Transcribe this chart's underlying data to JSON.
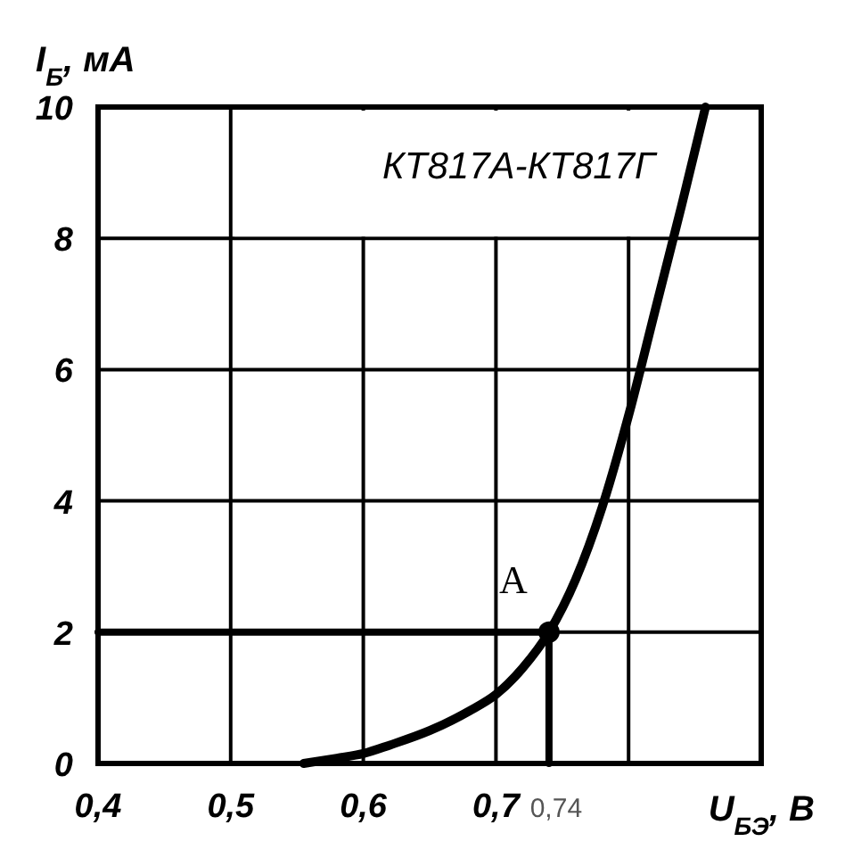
{
  "chart_data": {
    "type": "line",
    "xlabel": "U$_{БЭ}$, В",
    "ylabel": "I$_{Б}$, мА",
    "xlim": [
      0.4,
      0.9
    ],
    "ylim": [
      0,
      10
    ],
    "xticks": [
      {
        "value": 0.4,
        "label": "0,4"
      },
      {
        "value": 0.5,
        "label": "0,5"
      },
      {
        "value": 0.6,
        "label": "0,6"
      },
      {
        "value": 0.7,
        "label": "0,7"
      },
      {
        "value": 0.74,
        "label": "0,74"
      },
      {
        "value": 0.8,
        "label": null
      }
    ],
    "yticks": [
      0,
      2,
      4,
      6,
      8,
      10
    ],
    "grid": true,
    "series": [
      {
        "color": "#000000",
        "marker": "none",
        "x": [
          0.555,
          0.58,
          0.6,
          0.62,
          0.65,
          0.68,
          0.7,
          0.72,
          0.74,
          0.76,
          0.78,
          0.8,
          0.82,
          0.84,
          0.858
        ],
        "values": [
          0,
          0.08,
          0.15,
          0.28,
          0.5,
          0.8,
          1.05,
          1.45,
          2,
          2.8,
          3.9,
          5.3,
          6.9,
          8.5,
          10
        ]
      },
      {
        "color": "#000000",
        "marker": "none",
        "x": [
          0.4,
          0.74
        ],
        "values": [
          2,
          2
        ]
      },
      {
        "color": "#000000",
        "marker": "none",
        "x": [
          0.74,
          0.74
        ],
        "values": [
          0,
          2
        ]
      },
      {
        "type": "scatter",
        "color": "#000000",
        "marker": "circle",
        "x": [
          0.74
        ],
        "values": [
          2
        ]
      }
    ],
    "annotations": [
      "КТ817А-КТ817Г",
      {
        "text": "A",
        "x": 0.74,
        "y": 2
      }
    ]
  }
}
